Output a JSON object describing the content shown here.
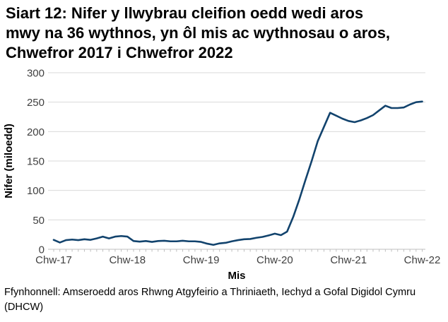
{
  "page": {
    "title_lines": [
      "Siart 12: Nifer y llwybrau cleifion oedd wedi aros",
      "mwy na 36 wythnos, yn ôl mis ac wythnosau o aros,",
      "Chwefror 2017 i Chwefror 2022"
    ],
    "source_lines": [
      "Ffynhonnell: Amseroedd aros Rhwng Atgyfeirio a Thriniaeth, Iechyd a Gofal Digidol Cymru",
      "(DHCW)"
    ]
  },
  "colors": {
    "line": "#12436d",
    "grid": "#d9d9d9",
    "axis": "#bfbfbf",
    "tick_text": "#404040",
    "axis_title_text": "#000000"
  },
  "chart_data": {
    "type": "line",
    "title": "Siart 12: Nifer y llwybrau cleifion oedd wedi aros mwy na 36 wythnos, yn ôl mis ac wythnosau o aros, Chwefror 2017 i Chwefror 2022",
    "xlabel": "Mis",
    "ylabel": "Nifer (miloedd)",
    "ylim": [
      0,
      300
    ],
    "yticks": [
      0,
      50,
      100,
      150,
      200,
      250,
      300
    ],
    "grid": true,
    "legend": false,
    "x_frequency": "monthly",
    "x_start_label": "Chw-17",
    "x_end_label": "Chw-22",
    "xtick_labels": [
      "Chw-17",
      "Chw-18",
      "Chw-19",
      "Chw-20",
      "Chw-21",
      "Chw-22"
    ],
    "xtick_indices": [
      0,
      12,
      24,
      36,
      48,
      60
    ],
    "values": [
      16,
      11.5,
      15.5,
      16.5,
      15.5,
      17,
      16,
      18.5,
      21.5,
      18.5,
      21.5,
      22.5,
      21.5,
      14,
      13,
      14,
      12.5,
      14,
      14.5,
      13.5,
      13.5,
      14.5,
      13.5,
      13.5,
      12.5,
      9.5,
      7.5,
      10,
      11,
      13.5,
      15.5,
      17,
      17.5,
      19.5,
      21,
      23.5,
      26.5,
      24,
      30,
      55,
      85,
      118,
      150,
      184,
      208,
      232,
      227,
      222,
      218,
      216,
      219,
      223,
      228,
      236,
      244,
      240,
      240,
      241,
      246,
      250,
      251
    ]
  }
}
